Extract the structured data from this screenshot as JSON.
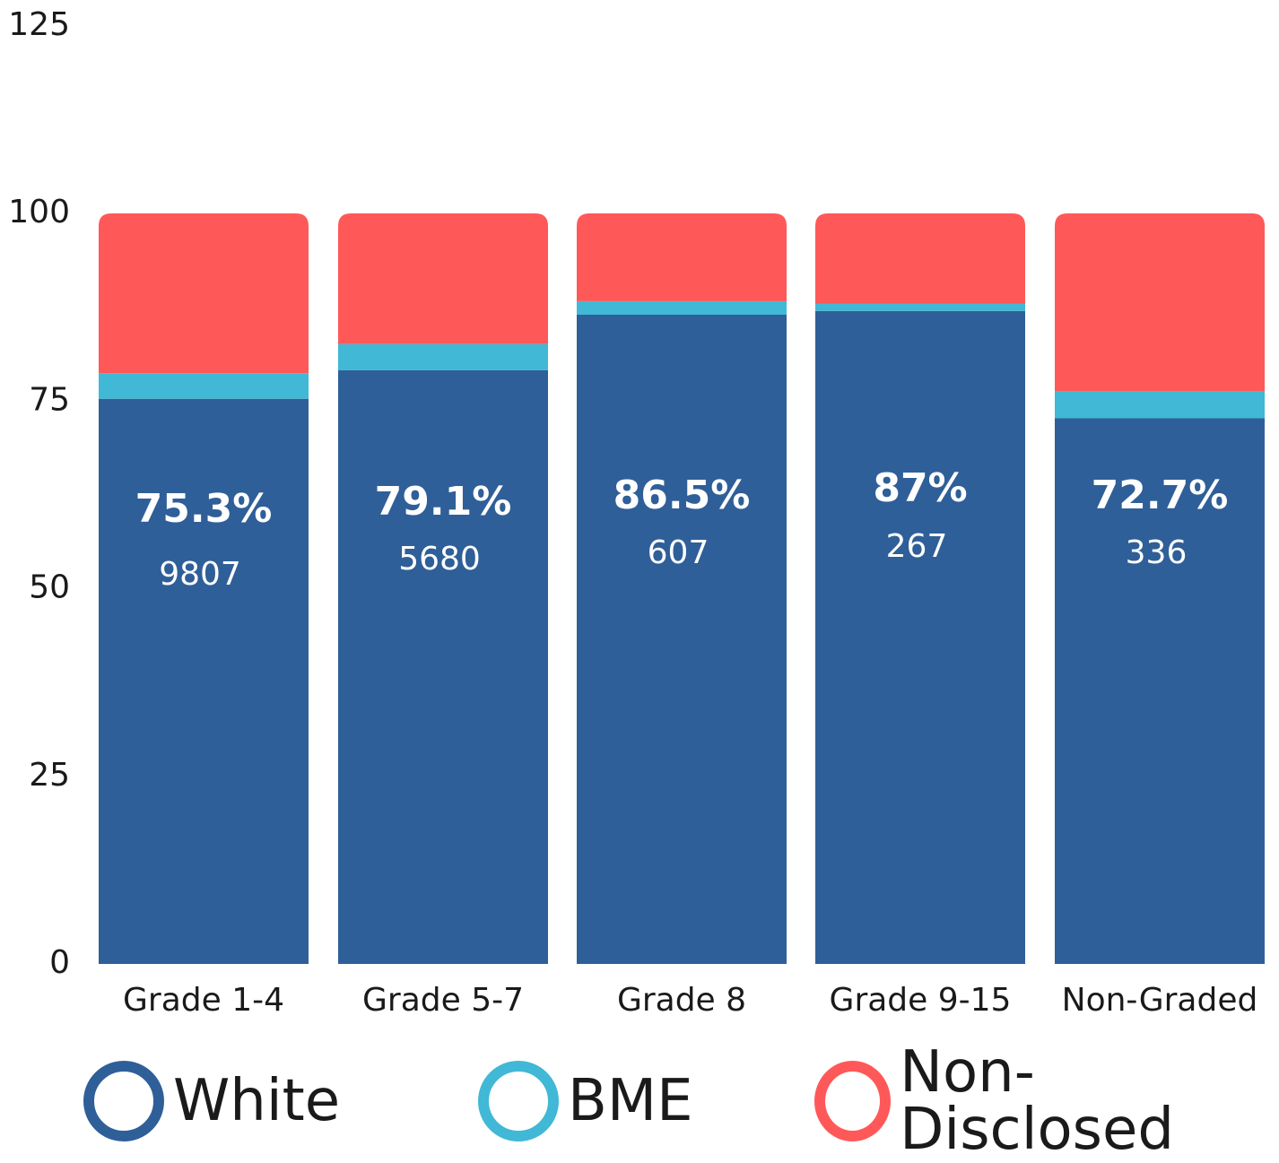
{
  "chart_data": {
    "type": "bar",
    "stacked": true,
    "categories": [
      "Grade 1-4",
      "Grade 5-7",
      "Grade 8",
      "Grade 9-15",
      "Non-Graded"
    ],
    "series": [
      {
        "name": "White",
        "color": "#2f5f98",
        "values": [
          75.3,
          79.1,
          86.5,
          87,
          72.7
        ]
      },
      {
        "name": "BME",
        "color": "#41b8d5",
        "values": [
          3.4,
          3.5,
          1.8,
          1.0,
          3.6
        ]
      },
      {
        "name": "Non-Disclosed",
        "color": "#ff5858",
        "values": [
          21.3,
          17.4,
          11.7,
          12.0,
          23.7
        ]
      }
    ],
    "data_labels": {
      "percent": [
        "75.3%",
        "79.1%",
        "86.5%",
        "87%",
        "72.7%"
      ],
      "count": [
        "9807",
        "5680",
        "607",
        "267",
        "336"
      ]
    },
    "yticks": [
      0,
      25,
      50,
      75,
      100,
      125
    ],
    "ylim": [
      0,
      125
    ],
    "grid": false,
    "legend_position": "bottom",
    "title": "",
    "xlabel": "",
    "ylabel": ""
  }
}
